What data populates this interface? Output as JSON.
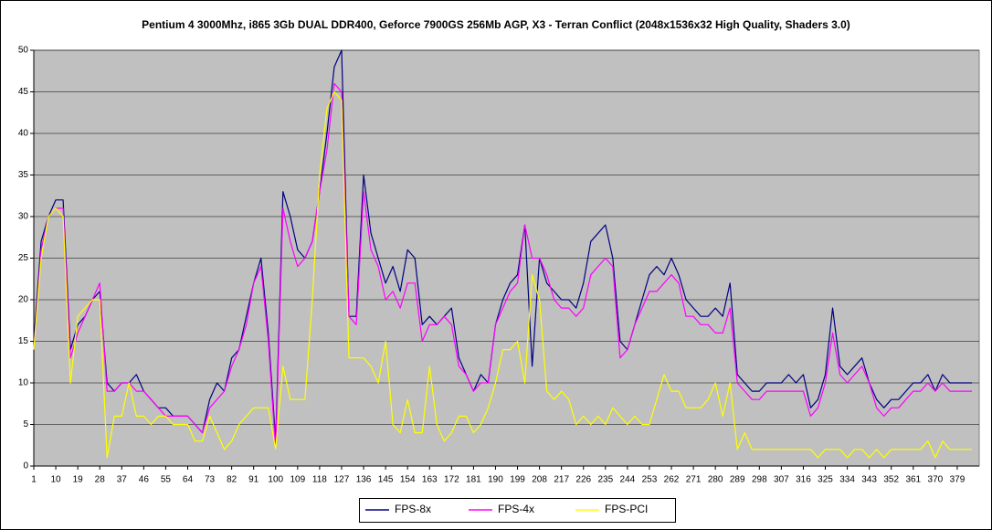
{
  "chart_data": {
    "type": "line",
    "title": "Pentium 4 3000Mhz, i865 3Gb DUAL DDR400, Geforce 7900GS 256Mb AGP, X3 - Terran Conflict (2048x1536x32  High Quality, Shaders 3.0)",
    "x": [
      1,
      4,
      7,
      10,
      13,
      16,
      19,
      22,
      25,
      28,
      31,
      34,
      37,
      40,
      43,
      46,
      49,
      52,
      55,
      58,
      61,
      64,
      67,
      70,
      73,
      76,
      79,
      82,
      85,
      88,
      91,
      94,
      97,
      100,
      103,
      106,
      109,
      112,
      115,
      118,
      121,
      124,
      127,
      130,
      133,
      136,
      139,
      142,
      145,
      148,
      151,
      154,
      157,
      160,
      163,
      166,
      169,
      172,
      175,
      178,
      181,
      184,
      187,
      190,
      193,
      196,
      199,
      202,
      205,
      208,
      211,
      214,
      217,
      220,
      223,
      226,
      229,
      232,
      235,
      238,
      241,
      244,
      247,
      250,
      253,
      256,
      259,
      262,
      265,
      268,
      271,
      274,
      277,
      280,
      283,
      286,
      289,
      292,
      295,
      298,
      301,
      304,
      307,
      310,
      313,
      316,
      319,
      322,
      325,
      328,
      331,
      334,
      337,
      340,
      343,
      346,
      349,
      352,
      355,
      358,
      361,
      364,
      367,
      370,
      373,
      376,
      379,
      382,
      385
    ],
    "xlim": [
      1,
      388
    ],
    "xticks": [
      1,
      10,
      19,
      28,
      37,
      46,
      55,
      64,
      73,
      82,
      91,
      100,
      109,
      118,
      127,
      136,
      145,
      154,
      163,
      172,
      181,
      190,
      199,
      208,
      217,
      226,
      235,
      244,
      253,
      262,
      271,
      280,
      289,
      298,
      307,
      316,
      325,
      334,
      343,
      352,
      361,
      370,
      379
    ],
    "ylim": [
      0,
      50
    ],
    "yticks": [
      0,
      5,
      10,
      15,
      20,
      25,
      30,
      35,
      40,
      45,
      50
    ],
    "grid": true,
    "legend": "bottom",
    "series": [
      {
        "name": "FPS-8x",
        "color": "#000080",
        "values": [
          15,
          27,
          30,
          32,
          32,
          14,
          17,
          18,
          20,
          21,
          10,
          9,
          10,
          10,
          11,
          9,
          8,
          7,
          7,
          6,
          6,
          6,
          5,
          4,
          8,
          10,
          9,
          13,
          14,
          18,
          22,
          25,
          16,
          3,
          33,
          30,
          26,
          25,
          27,
          33,
          40,
          48,
          50,
          18,
          18,
          35,
          28,
          25,
          22,
          24,
          21,
          26,
          25,
          17,
          18,
          17,
          18,
          19,
          13,
          11,
          9,
          11,
          10,
          17,
          20,
          22,
          23,
          29,
          12,
          25,
          22,
          21,
          20,
          20,
          19,
          22,
          27,
          28,
          29,
          25,
          15,
          14,
          17,
          20,
          23,
          24,
          23,
          25,
          23,
          20,
          19,
          18,
          18,
          19,
          18,
          22,
          11,
          10,
          9,
          9,
          10,
          10,
          10,
          11,
          10,
          11,
          7,
          8,
          11,
          19,
          12,
          11,
          12,
          13,
          10,
          8,
          7,
          8,
          8,
          9,
          10,
          10,
          11,
          9,
          11,
          10,
          10,
          10,
          10
        ]
      },
      {
        "name": "FPS-4x",
        "color": "#ff00ff",
        "values": [
          14,
          26,
          30,
          31,
          31,
          13,
          16,
          18,
          20,
          22,
          9,
          9,
          10,
          10,
          9,
          9,
          8,
          7,
          6,
          6,
          6,
          6,
          5,
          4,
          7,
          8,
          9,
          12,
          14,
          17,
          22,
          24,
          15,
          2,
          31,
          27,
          24,
          25,
          27,
          33,
          38,
          46,
          45,
          18,
          17,
          33,
          26,
          24,
          20,
          21,
          19,
          22,
          22,
          15,
          17,
          17,
          18,
          17,
          12,
          11,
          9,
          10,
          10,
          17,
          19,
          21,
          22,
          29,
          25,
          25,
          23,
          20,
          19,
          19,
          18,
          19,
          23,
          24,
          25,
          24,
          13,
          14,
          17,
          19,
          21,
          21,
          22,
          23,
          22,
          18,
          18,
          17,
          17,
          16,
          16,
          19,
          10,
          9,
          8,
          8,
          9,
          9,
          9,
          9,
          9,
          9,
          6,
          7,
          10,
          16,
          11,
          10,
          11,
          12,
          10,
          7,
          6,
          7,
          7,
          8,
          9,
          9,
          10,
          9,
          10,
          9,
          9,
          9,
          9
        ]
      },
      {
        "name": "FPS-PCI",
        "color": "#ffff00",
        "values": [
          14,
          25,
          30,
          31,
          30,
          10,
          18,
          19,
          20,
          20,
          1,
          6,
          6,
          10,
          6,
          6,
          5,
          6,
          6,
          5,
          5,
          5,
          3,
          3,
          6,
          4,
          2,
          3,
          5,
          6,
          7,
          7,
          7,
          2,
          12,
          8,
          8,
          8,
          20,
          35,
          43,
          45,
          44,
          13,
          13,
          13,
          12,
          10,
          15,
          5,
          4,
          8,
          4,
          4,
          12,
          5,
          3,
          4,
          6,
          6,
          4,
          5,
          7,
          10,
          14,
          14,
          15,
          10,
          23,
          20,
          9,
          8,
          9,
          8,
          5,
          6,
          5,
          6,
          5,
          7,
          6,
          5,
          6,
          5,
          5,
          8,
          11,
          9,
          9,
          7,
          7,
          7,
          8,
          10,
          6,
          10,
          2,
          4,
          2,
          2,
          2,
          2,
          2,
          2,
          2,
          2,
          2,
          1,
          2,
          2,
          2,
          1,
          2,
          2,
          1,
          2,
          1,
          2,
          2,
          2,
          2,
          2,
          3,
          1,
          3,
          2,
          2,
          2,
          2
        ]
      }
    ]
  }
}
